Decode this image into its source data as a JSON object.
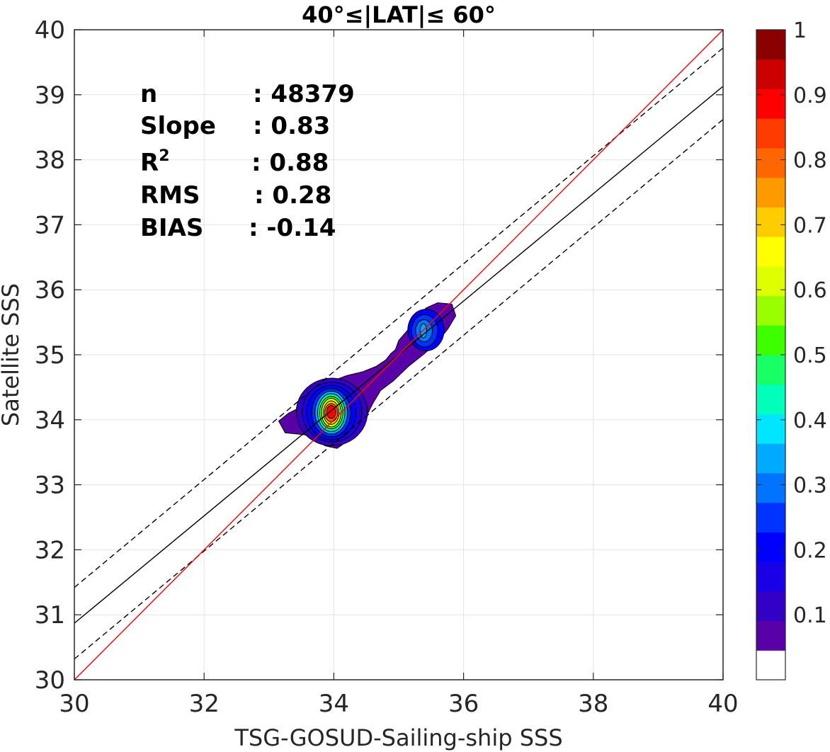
{
  "chart_data": {
    "type": "contour",
    "title": "40°≤|LAT|≤ 60°",
    "xlabel": "TSG-GOSUD-Sailing-ship SSS",
    "ylabel": "Satellite SSS",
    "xlim": [
      30,
      40
    ],
    "ylim": [
      30,
      40
    ],
    "xticks": [
      30,
      32,
      34,
      36,
      38,
      40
    ],
    "yticks": [
      30,
      31,
      32,
      33,
      34,
      35,
      36,
      37,
      38,
      39,
      40
    ],
    "grid": true,
    "stats": [
      {
        "label": "n",
        "sep": ": 48379"
      },
      {
        "label": "Slope",
        "sep": ": 0.83"
      },
      {
        "label": "R",
        "sup": "2",
        "sep": ": 0.88"
      },
      {
        "label": "RMS",
        "sep": ": 0.28"
      },
      {
        "label": "BIAS",
        "sep": ": -0.14"
      }
    ],
    "lines": {
      "identity": {
        "x": [
          30,
          40
        ],
        "y": [
          30,
          40
        ],
        "color": "#ff0000"
      },
      "fit": {
        "x": [
          30,
          40
        ],
        "y": [
          30.87,
          39.13
        ],
        "color": "#000000"
      },
      "fit_upper": {
        "x": [
          30,
          40
        ],
        "y": [
          31.42,
          39.72
        ],
        "color": "#000000",
        "style": "dashed"
      },
      "fit_lower": {
        "x": [
          30,
          40
        ],
        "y": [
          30.32,
          38.62
        ],
        "color": "#000000",
        "style": "dashed"
      }
    },
    "density_peaks": [
      {
        "x": 33.97,
        "y": 34.13,
        "level": 1.0
      },
      {
        "x": 35.38,
        "y": 35.37,
        "level": 0.33
      }
    ],
    "colorbar": {
      "range": [
        0,
        1
      ],
      "tick_labels": [
        "0.1",
        "0.2",
        "0.3",
        "0.4",
        "0.5",
        "0.6",
        "0.7",
        "0.8",
        "0.9",
        "1"
      ],
      "tick_values": [
        0.1,
        0.2,
        0.3,
        0.4,
        0.5,
        0.6,
        0.7,
        0.8,
        0.9,
        1.0
      ],
      "colors": [
        "#ffffff",
        "#5a00a8",
        "#3300c8",
        "#1a00e6",
        "#0000ff",
        "#0033ff",
        "#0073ff",
        "#00aaff",
        "#00e6ff",
        "#00ffbb",
        "#19ff66",
        "#3dff00",
        "#99ff00",
        "#ddff00",
        "#ffff00",
        "#ffcc00",
        "#ff9900",
        "#ff6600",
        "#ff3c00",
        "#ff0000",
        "#cc0000",
        "#8b0000"
      ]
    }
  }
}
